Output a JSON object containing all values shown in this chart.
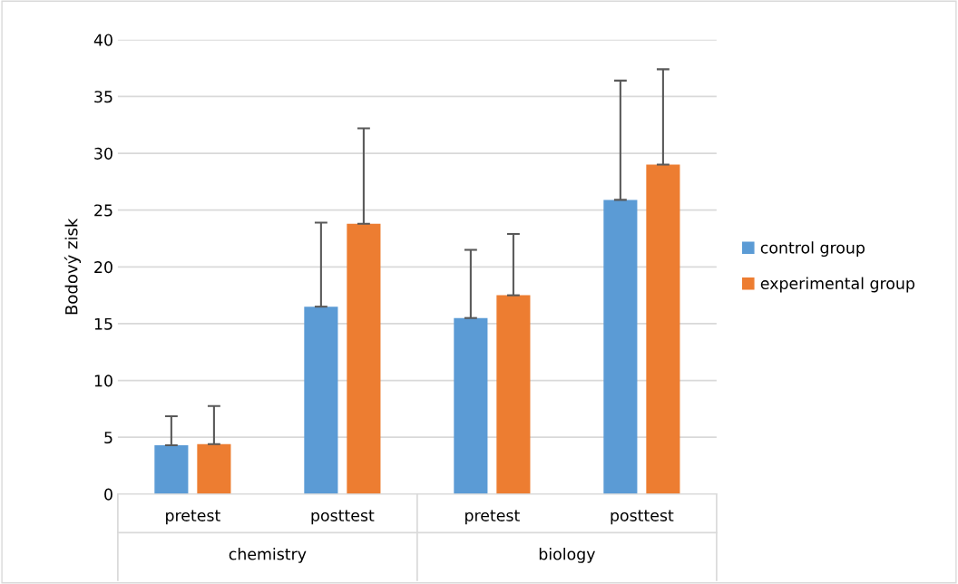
{
  "chart_data": {
    "type": "bar",
    "ylabel": "Bodový zisk",
    "categories": [
      "pretest",
      "posttest",
      "pretest",
      "posttest"
    ],
    "annotations": [
      "chemistry",
      "biology"
    ],
    "series": [
      {
        "name": "control group",
        "color": "#5b9bd5",
        "values": [
          4.3,
          16.5,
          15.5,
          25.9
        ],
        "errors": [
          [
            4.3,
            6.85
          ],
          [
            16.5,
            23.9
          ],
          [
            15.5,
            21.5
          ],
          [
            25.9,
            36.4
          ]
        ]
      },
      {
        "name": "experimental group",
        "color": "#ed7d31",
        "values": [
          4.4,
          23.8,
          17.5,
          29.0
        ],
        "errors": [
          [
            4.4,
            7.75
          ],
          [
            23.8,
            32.2
          ],
          [
            17.5,
            22.9
          ],
          [
            29.0,
            37.4
          ]
        ]
      }
    ],
    "ylim": [
      0,
      40
    ],
    "yticks": [
      0,
      5,
      10,
      15,
      20,
      25,
      30,
      35,
      40
    ],
    "grid": "y",
    "legend": "right"
  }
}
